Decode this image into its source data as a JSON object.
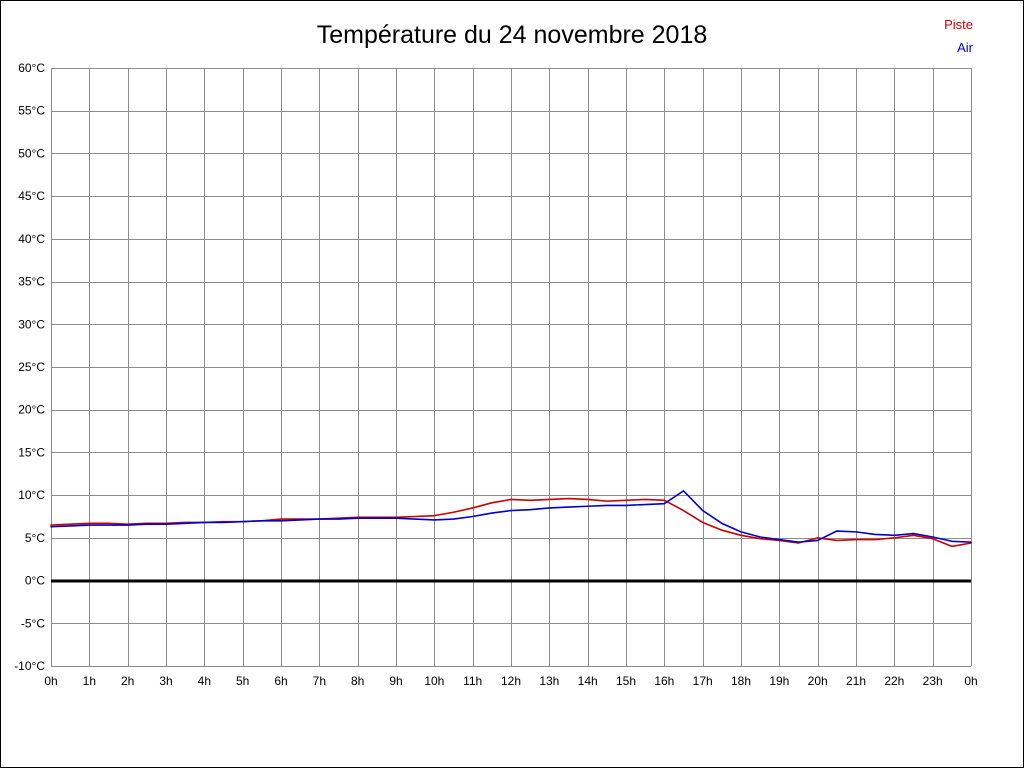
{
  "header": {
    "title": "Température du 24 novembre 2018"
  },
  "chart_data": {
    "type": "line",
    "title": "Température du 24 novembre 2018",
    "xlabel": "",
    "ylabel": "",
    "xlim": [
      0,
      24
    ],
    "ylim": [
      -10,
      60
    ],
    "y_tick_step": 5,
    "grid": true,
    "grid_color": "#8c8c8c",
    "zero_line": true,
    "zero_line_color": "#000000",
    "legend_position": "top-right",
    "x_tick_labels": [
      "0h",
      "1h",
      "2h",
      "3h",
      "4h",
      "5h",
      "6h",
      "7h",
      "8h",
      "9h",
      "10h",
      "11h",
      "12h",
      "13h",
      "14h",
      "15h",
      "16h",
      "17h",
      "18h",
      "19h",
      "20h",
      "21h",
      "22h",
      "23h",
      "0h"
    ],
    "y_tick_labels": [
      "60°C",
      "55°C",
      "50°C",
      "45°C",
      "40°C",
      "35°C",
      "30°C",
      "25°C",
      "20°C",
      "15°C",
      "10°C",
      "5°C",
      "0°C",
      "-5°C",
      "-10°C"
    ],
    "x": [
      0,
      0.5,
      1,
      1.5,
      2,
      2.5,
      3,
      3.5,
      4,
      4.5,
      5,
      5.5,
      6,
      6.5,
      7,
      7.5,
      8,
      8.5,
      9,
      9.5,
      10,
      10.5,
      11,
      11.5,
      12,
      12.5,
      13,
      13.5,
      14,
      14.5,
      15,
      15.5,
      16,
      16.5,
      17,
      17.5,
      18,
      18.5,
      19,
      19.5,
      20,
      20.5,
      21,
      21.5,
      22,
      22.5,
      23,
      23.5,
      24
    ],
    "series": [
      {
        "name": "Piste",
        "color": "#cc0000",
        "values": [
          6.5,
          6.6,
          6.7,
          6.7,
          6.6,
          6.7,
          6.7,
          6.8,
          6.8,
          6.9,
          6.9,
          7.0,
          7.2,
          7.2,
          7.2,
          7.3,
          7.4,
          7.4,
          7.4,
          7.5,
          7.6,
          8.0,
          8.5,
          9.1,
          9.5,
          9.4,
          9.5,
          9.6,
          9.5,
          9.3,
          9.4,
          9.5,
          9.4,
          8.2,
          6.8,
          5.9,
          5.3,
          4.9,
          4.7,
          4.4,
          5.0,
          4.7,
          4.8,
          4.8,
          5.0,
          5.3,
          4.9,
          4.0,
          4.4
        ]
      },
      {
        "name": "Air",
        "color": "#0000cc",
        "values": [
          6.3,
          6.4,
          6.5,
          6.5,
          6.5,
          6.6,
          6.6,
          6.7,
          6.8,
          6.8,
          6.9,
          7.0,
          7.0,
          7.1,
          7.2,
          7.2,
          7.3,
          7.3,
          7.3,
          7.2,
          7.1,
          7.2,
          7.5,
          7.9,
          8.2,
          8.3,
          8.5,
          8.6,
          8.7,
          8.8,
          8.8,
          8.9,
          9.0,
          10.5,
          8.2,
          6.7,
          5.7,
          5.1,
          4.8,
          4.5,
          4.7,
          5.8,
          5.7,
          5.4,
          5.3,
          5.5,
          5.1,
          4.6,
          4.5
        ]
      }
    ]
  }
}
